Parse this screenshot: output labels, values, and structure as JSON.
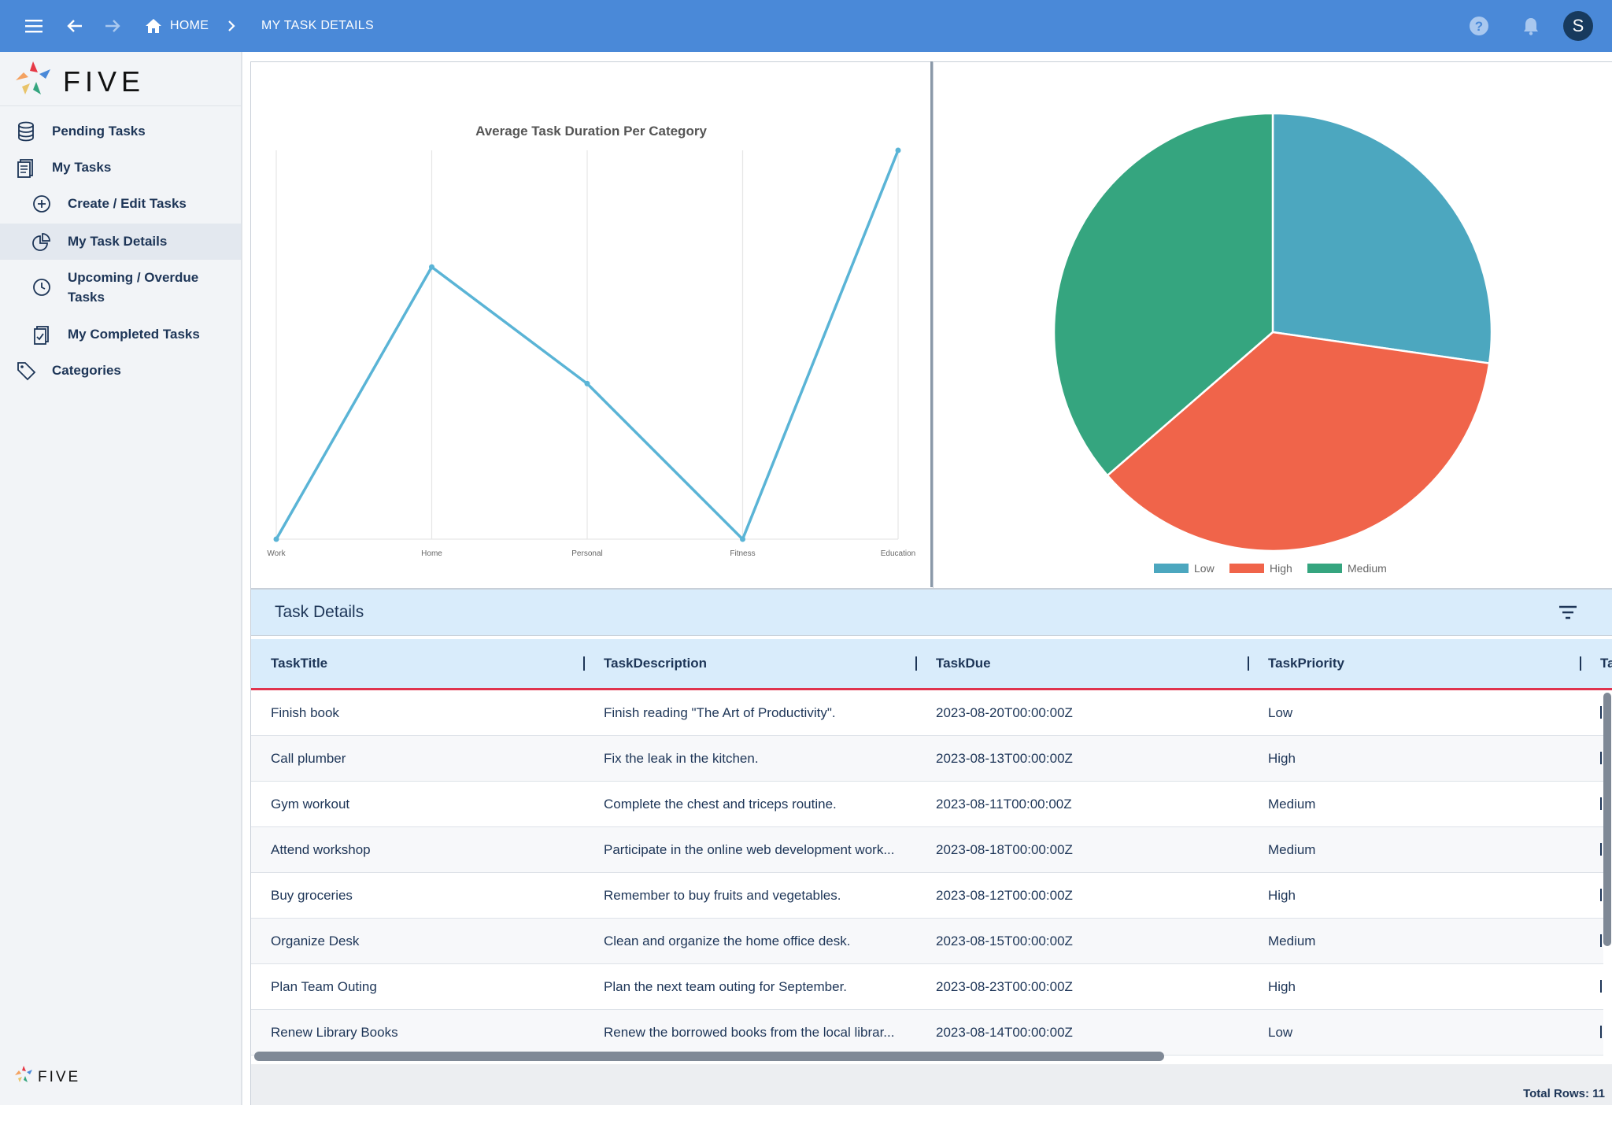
{
  "topbar": {
    "breadcrumb_home": "HOME",
    "breadcrumb_current": "MY TASK DETAILS",
    "avatar_letter": "S",
    "color": "#4a89d8"
  },
  "sidebar": {
    "logo_text": "FIVE",
    "items": [
      {
        "label": "Pending Tasks",
        "icon": "database-icon"
      },
      {
        "label": "My Tasks",
        "icon": "clipboard-list-icon"
      },
      {
        "label": "Create / Edit Tasks",
        "icon": "plus-circle-icon"
      },
      {
        "label": "My Task Details",
        "icon": "pie-chart-icon",
        "active": true
      },
      {
        "label": "Upcoming / Overdue Tasks",
        "icon": "clock-icon"
      },
      {
        "label": "My Completed Tasks",
        "icon": "clipboard-check-icon"
      },
      {
        "label": "Categories",
        "icon": "tag-icon"
      }
    ]
  },
  "chart_data": [
    {
      "type": "line",
      "title": "Average Task Duration Per Category",
      "categories": [
        "Work",
        "Home",
        "Personal",
        "Fitness",
        "Education"
      ],
      "series": [
        {
          "values": [
            0,
            7,
            4,
            0,
            10
          ],
          "color": "#5ab4d6"
        }
      ],
      "ylim": [
        0,
        10
      ],
      "grid": "vertical"
    },
    {
      "type": "pie",
      "labels": [
        "Low",
        "High",
        "Medium"
      ],
      "values": [
        3,
        4,
        4
      ],
      "colors": [
        "#4ca7bf",
        "#f0644a",
        "#35a57f"
      ],
      "legend": "bottom"
    }
  ],
  "table": {
    "title": "Task Details",
    "columns": [
      "TaskTitle",
      "TaskDescription",
      "TaskDue",
      "TaskPriority",
      "Ta"
    ],
    "rows": [
      [
        "Finish book",
        "Finish reading \"The Art of Productivity\".",
        "2023-08-20T00:00:00Z",
        "Low"
      ],
      [
        "Call plumber",
        "Fix the leak in the kitchen.",
        "2023-08-13T00:00:00Z",
        "High"
      ],
      [
        "Gym workout",
        "Complete the chest and triceps routine.",
        "2023-08-11T00:00:00Z",
        "Medium"
      ],
      [
        "Attend workshop",
        "Participate in the online web development work...",
        "2023-08-18T00:00:00Z",
        "Medium"
      ],
      [
        "Buy groceries",
        "Remember to buy fruits and vegetables.",
        "2023-08-12T00:00:00Z",
        "High"
      ],
      [
        "Organize Desk",
        "Clean and organize the home office desk.",
        "2023-08-15T00:00:00Z",
        "Medium"
      ],
      [
        "Plan Team Outing",
        "Plan the next team outing for September.",
        "2023-08-23T00:00:00Z",
        "High"
      ],
      [
        "Renew Library Books",
        "Renew the borrowed books from the local librar...",
        "2023-08-14T00:00:00Z",
        "Low"
      ]
    ],
    "total_rows": "Total Rows: 11"
  }
}
